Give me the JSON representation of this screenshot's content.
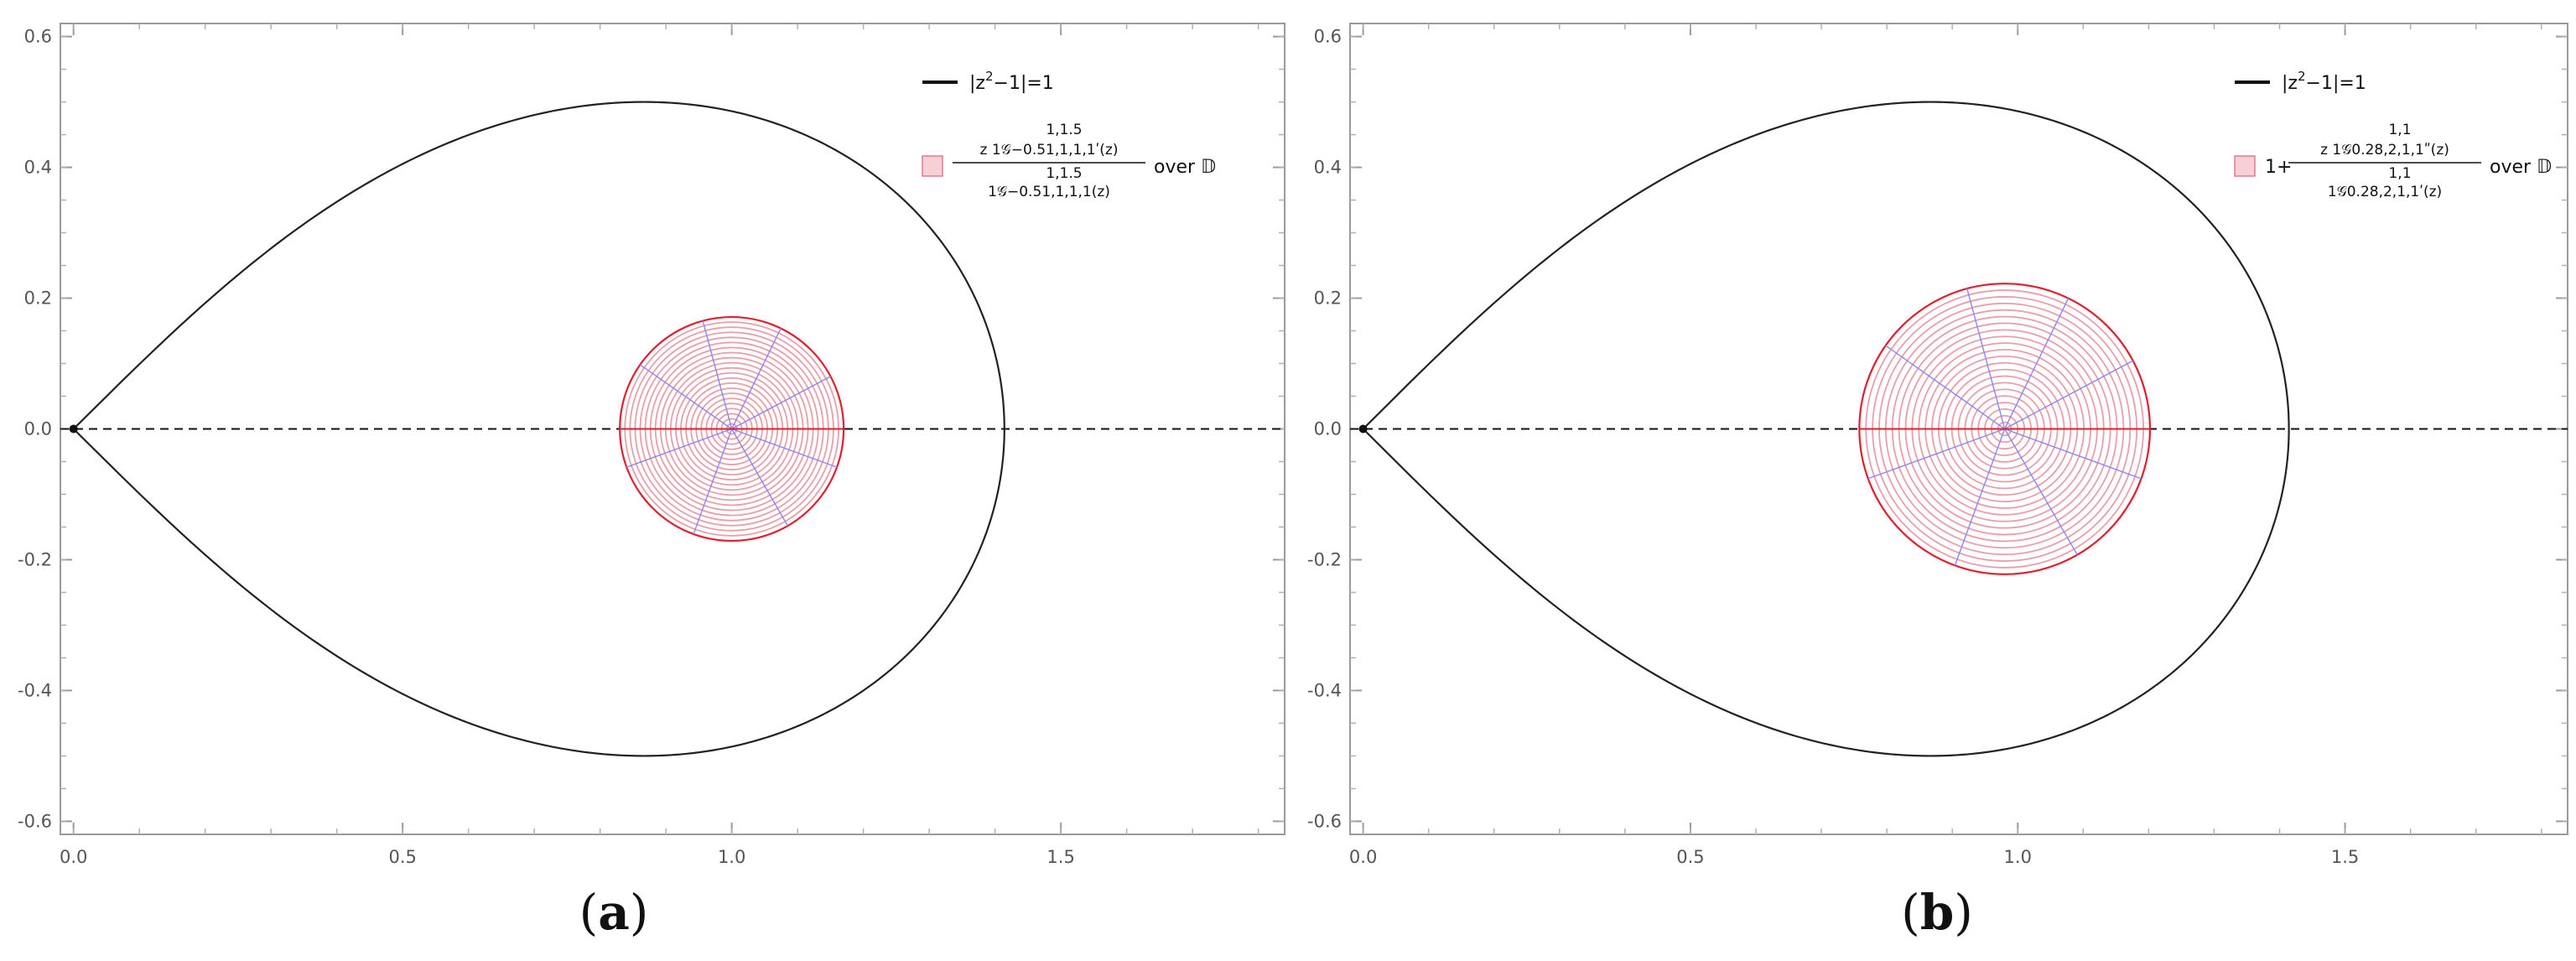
{
  "chart_data": [
    {
      "type": "line",
      "caption_open": "(",
      "caption_letter": "a",
      "caption_close": ")",
      "xlim": [
        -0.02,
        1.84
      ],
      "ylim": [
        -0.62,
        0.62
      ],
      "x_ticks": [
        0.0,
        0.5,
        1.0,
        1.5
      ],
      "x_tick_labels": [
        "0.0",
        "0.5",
        "1.0",
        "1.5"
      ],
      "y_ticks": [
        -0.6,
        -0.4,
        -0.2,
        0.0,
        0.2,
        0.4,
        0.6
      ],
      "y_tick_labels": [
        "-0.6",
        "-0.4",
        "-0.2",
        "0.0",
        "0.2",
        "0.4",
        "0.6"
      ],
      "boundary_curve": "|z^2 - 1| = 1",
      "region": {
        "center": [
          1.0,
          0.0
        ],
        "radius": 0.17
      },
      "legend": {
        "placement": "top-right",
        "curve_label_parts": [
          "|z",
          "2",
          "−1|=1"
        ],
        "region_numerator": "z 1𝒢−0.51,1,1,1ʹ(z)",
        "region_numerator_sup": "1,1.5",
        "region_denominator": "1𝒢−0.51,1,1,1(z)",
        "region_denominator_sup": "1,1.5",
        "region_prefix": "",
        "region_suffix": "over 𝔻"
      },
      "colors": {
        "curve": "#222222",
        "region_stroke": "#e8a0a8",
        "region_edge": "#e02030",
        "radial": "#8888ee",
        "swatch_fill": "#f6d0d4",
        "swatch_stroke": "#d88090"
      }
    },
    {
      "type": "line",
      "caption_open": "(",
      "caption_letter": "b",
      "caption_close": ")",
      "xlim": [
        -0.02,
        1.84
      ],
      "ylim": [
        -0.62,
        0.62
      ],
      "x_ticks": [
        0.0,
        0.5,
        1.0,
        1.5
      ],
      "x_tick_labels": [
        "0.0",
        "0.5",
        "1.0",
        "1.5"
      ],
      "y_ticks": [
        -0.6,
        -0.4,
        -0.2,
        0.0,
        0.2,
        0.4,
        0.6
      ],
      "y_tick_labels": [
        "-0.6",
        "-0.4",
        "-0.2",
        "0.0",
        "0.2",
        "0.4",
        "0.6"
      ],
      "boundary_curve": "|z^2 - 1| = 1",
      "region": {
        "center": [
          0.98,
          0.0
        ],
        "radius": 0.222
      },
      "legend": {
        "placement": "top-right",
        "curve_label_parts": [
          "|z",
          "2",
          "−1|=1"
        ],
        "region_numerator": "z 1𝒢0.28,2,1,1ʺ(z)",
        "region_numerator_sup": "1,1",
        "region_denominator": "1𝒢0.28,2,1,1ʹ(z)",
        "region_denominator_sup": "1,1",
        "region_prefix": "1+",
        "region_suffix": "over 𝔻"
      },
      "colors": {
        "curve": "#222222",
        "region_stroke": "#e8a0a8",
        "region_edge": "#e02030",
        "radial": "#8888ee",
        "swatch_fill": "#f6d0d4",
        "swatch_stroke": "#d88090"
      }
    }
  ]
}
